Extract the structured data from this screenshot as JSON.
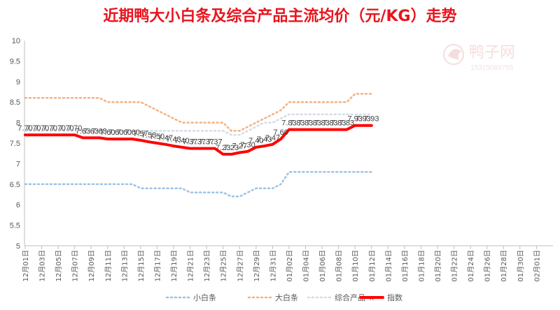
{
  "chart_data": {
    "type": "line",
    "title": "近期鸭大小白条及综合产品主流均价（元/KG）走势",
    "ylim": [
      5,
      10
    ],
    "yticks": [
      "5",
      "5.5",
      "6",
      "6.5",
      "7",
      "7.5",
      "8",
      "8.5",
      "9",
      "9.5",
      "10"
    ],
    "x_tick_labels": [
      "12月01日",
      "12月03日",
      "12月05日",
      "12月07日",
      "12月09日",
      "12月11日",
      "12月13日",
      "12月15日",
      "12月17日",
      "12月19日",
      "12月21日",
      "12月23日",
      "12月25日",
      "12月27日",
      "12月29日",
      "12月31日",
      "01月02日",
      "01月04日",
      "01月06日",
      "01月08日",
      "01月10日",
      "01月12日",
      "01月14日",
      "01月16日",
      "01月18日",
      "01月20日",
      "01月22日",
      "01月24日",
      "01月26日",
      "01月28日",
      "01月30日",
      "02月01日"
    ],
    "grid": false,
    "legend_position": "bottom",
    "colors": {
      "small": "#9dc3e6",
      "large": "#f4b183",
      "combined": "#d6dce5",
      "index": "#ff0000"
    },
    "series": [
      {
        "name": "小白条",
        "key": "small",
        "values": [
          6.5,
          6.5,
          6.5,
          6.5,
          6.5,
          6.5,
          6.5,
          6.5,
          6.5,
          6.5,
          6.5,
          6.5,
          6.5,
          6.5,
          6.4,
          6.4,
          6.4,
          6.4,
          6.4,
          6.4,
          6.3,
          6.3,
          6.3,
          6.3,
          6.3,
          6.2,
          6.2,
          6.3,
          6.4,
          6.4,
          6.4,
          6.5,
          6.8,
          6.8,
          6.8,
          6.8,
          6.8,
          6.8,
          6.8,
          6.8,
          6.8,
          6.8,
          6.8
        ]
      },
      {
        "name": "大白条",
        "key": "large",
        "values": [
          8.6,
          8.6,
          8.6,
          8.6,
          8.6,
          8.6,
          8.6,
          8.6,
          8.6,
          8.6,
          8.5,
          8.5,
          8.5,
          8.5,
          8.5,
          8.4,
          8.3,
          8.2,
          8.1,
          8.0,
          8.0,
          8.0,
          8.0,
          8.0,
          8.0,
          7.8,
          7.8,
          7.9,
          8.0,
          8.1,
          8.2,
          8.3,
          8.5,
          8.5,
          8.5,
          8.5,
          8.5,
          8.5,
          8.5,
          8.5,
          8.7,
          8.7,
          8.7
        ]
      },
      {
        "name": "综合产品",
        "key": "combined",
        "values": [
          7.8,
          7.8,
          7.8,
          7.8,
          7.8,
          7.8,
          7.8,
          7.8,
          7.8,
          7.8,
          7.8,
          7.8,
          7.8,
          7.8,
          7.8,
          7.8,
          7.8,
          7.8,
          7.8,
          7.8,
          7.8,
          7.8,
          7.8,
          7.8,
          7.8,
          7.7,
          7.7,
          7.8,
          7.9,
          8.0,
          8.0,
          8.1,
          8.2,
          8.2,
          8.2,
          8.2,
          8.2,
          8.2,
          8.2,
          8.2,
          8.2,
          8.2,
          8.2
        ]
      },
      {
        "name": "指数",
        "key": "index",
        "values": [
          7.7,
          7.7,
          7.7,
          7.7,
          7.7,
          7.7,
          7.7,
          7.63,
          7.63,
          7.63,
          7.6,
          7.6,
          7.6,
          7.6,
          7.57,
          7.53,
          7.5,
          7.47,
          7.43,
          7.4,
          7.37,
          7.37,
          7.37,
          7.37,
          7.23,
          7.23,
          7.27,
          7.3,
          7.4,
          7.43,
          7.47,
          7.6,
          7.83,
          7.83,
          7.83,
          7.83,
          7.83,
          7.83,
          7.83,
          7.83,
          7.93,
          7.93,
          7.93
        ],
        "labels": [
          "7.70",
          "7.70",
          "7.70",
          "7.70",
          "7.70",
          "7.70",
          "7.70",
          "7.63",
          "7.63",
          "7.63",
          "7.60",
          "7.60",
          "7.60",
          "7.60",
          "7.57",
          "7.53",
          "7.50",
          "7.47",
          "7.43",
          "7.40",
          "7.37",
          "7.37",
          "7.37",
          "7.37",
          "7.23",
          "7.23",
          "7.27",
          "7.30",
          "7.40",
          "7.43",
          "7.47",
          "7.60",
          "7.83",
          "7.83",
          "7.83",
          "7.83",
          "7.83",
          "7.83",
          "7.83",
          "7.83",
          "7.93",
          "7.93",
          "7.93"
        ]
      }
    ]
  },
  "watermark": {
    "name": "鸭子网",
    "phone": "15315089765"
  }
}
